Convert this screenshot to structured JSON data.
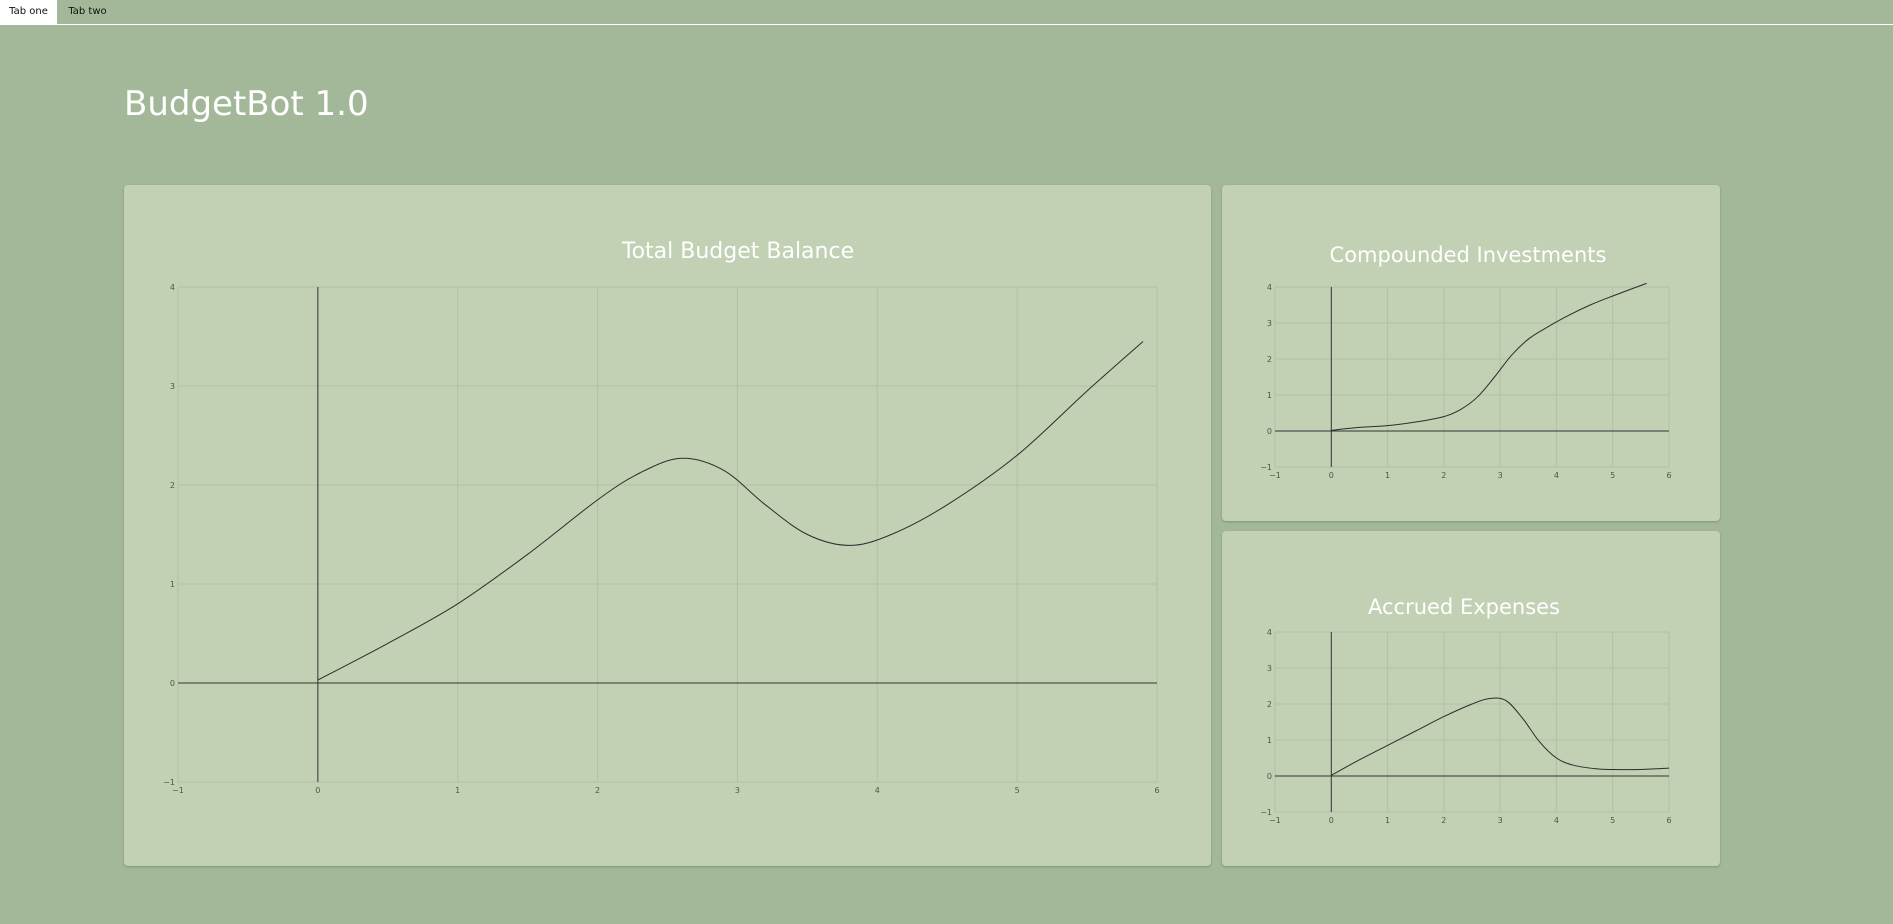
{
  "tabs": [
    {
      "label": "Tab one",
      "active": true
    },
    {
      "label": "Tab two",
      "active": false
    }
  ],
  "page": {
    "title": "BudgetBot 1.0"
  },
  "colors": {
    "background": "#a3b899",
    "card": "#c2d0b4",
    "title_text": "#ffffff",
    "line": "#2c2c2c"
  },
  "chart_data": [
    {
      "id": "total-budget-balance",
      "type": "line",
      "title": "Total Budget Balance",
      "xlabel": "",
      "ylabel": "",
      "xlim": [
        -1,
        6
      ],
      "ylim": [
        -1,
        4
      ],
      "x_ticks": [
        -1,
        0,
        1,
        2,
        3,
        4,
        5,
        6
      ],
      "y_ticks": [
        -1,
        0,
        1,
        2,
        3,
        4
      ],
      "x_tick_labels": [
        "−1",
        "0",
        "1",
        "2",
        "3",
        "4",
        "5",
        "6"
      ],
      "y_tick_labels": [
        "−1",
        "0",
        "1",
        "2",
        "3",
        "4"
      ],
      "grid": true,
      "series": [
        {
          "x": [
            0,
            0.5,
            1,
            1.5,
            2,
            2.3,
            2.6,
            2.9,
            3.2,
            3.5,
            3.8,
            4.1,
            4.5,
            5,
            5.5,
            5.9
          ],
          "y": [
            0.03,
            0.4,
            0.8,
            1.3,
            1.85,
            2.12,
            2.27,
            2.15,
            1.8,
            1.5,
            1.39,
            1.5,
            1.8,
            2.3,
            2.95,
            3.45
          ]
        }
      ]
    },
    {
      "id": "compounded-investments",
      "type": "line",
      "title": "Compounded Investments",
      "xlabel": "",
      "ylabel": "",
      "xlim": [
        -1,
        6
      ],
      "ylim": [
        -1,
        4
      ],
      "x_ticks": [
        -1,
        0,
        1,
        2,
        3,
        4,
        5,
        6
      ],
      "y_ticks": [
        -1,
        0,
        1,
        2,
        3,
        4
      ],
      "x_tick_labels": [
        "−1",
        "0",
        "1",
        "2",
        "3",
        "4",
        "5",
        "6"
      ],
      "y_tick_labels": [
        "−1",
        "0",
        "1",
        "2",
        "3",
        "4"
      ],
      "grid": true,
      "series": [
        {
          "x": [
            0,
            0.5,
            1,
            1.5,
            2,
            2.3,
            2.6,
            2.9,
            3.2,
            3.5,
            3.8,
            4.2,
            4.6,
            5,
            5.6
          ],
          "y": [
            0.02,
            0.1,
            0.15,
            0.25,
            0.4,
            0.6,
            0.95,
            1.5,
            2.1,
            2.55,
            2.85,
            3.2,
            3.5,
            3.75,
            4.1
          ]
        }
      ]
    },
    {
      "id": "accrued-expenses",
      "type": "line",
      "title": "Accrued Expenses",
      "xlabel": "",
      "ylabel": "",
      "xlim": [
        -1,
        6
      ],
      "ylim": [
        -1,
        4
      ],
      "x_ticks": [
        -1,
        0,
        1,
        2,
        3,
        4,
        5,
        6
      ],
      "y_ticks": [
        -1,
        0,
        1,
        2,
        3,
        4
      ],
      "x_tick_labels": [
        "−1",
        "0",
        "1",
        "2",
        "3",
        "4",
        "5",
        "6"
      ],
      "y_tick_labels": [
        "−1",
        "0",
        "1",
        "2",
        "3",
        "4"
      ],
      "grid": true,
      "series": [
        {
          "x": [
            0,
            0.5,
            1,
            1.5,
            2,
            2.5,
            2.8,
            3.1,
            3.4,
            3.7,
            4,
            4.3,
            4.7,
            5,
            5.5,
            6
          ],
          "y": [
            0.02,
            0.45,
            0.85,
            1.25,
            1.65,
            2.0,
            2.15,
            2.1,
            1.6,
            0.95,
            0.5,
            0.3,
            0.2,
            0.18,
            0.18,
            0.22
          ]
        }
      ]
    }
  ]
}
